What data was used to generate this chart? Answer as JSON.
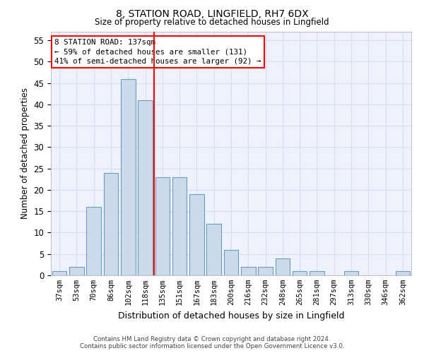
{
  "title1": "8, STATION ROAD, LINGFIELD, RH7 6DX",
  "title2": "Size of property relative to detached houses in Lingfield",
  "xlabel": "Distribution of detached houses by size in Lingfield",
  "ylabel": "Number of detached properties",
  "bins": [
    "37sqm",
    "53sqm",
    "70sqm",
    "86sqm",
    "102sqm",
    "118sqm",
    "135sqm",
    "151sqm",
    "167sqm",
    "183sqm",
    "200sqm",
    "216sqm",
    "232sqm",
    "248sqm",
    "265sqm",
    "281sqm",
    "297sqm",
    "313sqm",
    "330sqm",
    "346sqm",
    "362sqm"
  ],
  "values": [
    1,
    2,
    16,
    24,
    46,
    41,
    23,
    23,
    19,
    12,
    6,
    2,
    2,
    4,
    1,
    1,
    0,
    1,
    0,
    0,
    1
  ],
  "bar_color": "#ccdaeb",
  "bar_edge_color": "#6a9ec0",
  "vline_x_index": 6,
  "vline_color": "red",
  "annotation_box_text": "8 STATION ROAD: 137sqm\n← 59% of detached houses are smaller (131)\n41% of semi-detached houses are larger (92) →",
  "annotation_box_color": "red",
  "ylim": [
    0,
    57
  ],
  "yticks": [
    0,
    5,
    10,
    15,
    20,
    25,
    30,
    35,
    40,
    45,
    50,
    55
  ],
  "grid_color": "#d8dff0",
  "bg_color": "#eef2fb",
  "footer1": "Contains HM Land Registry data © Crown copyright and database right 2024.",
  "footer2": "Contains public sector information licensed under the Open Government Licence v3.0."
}
